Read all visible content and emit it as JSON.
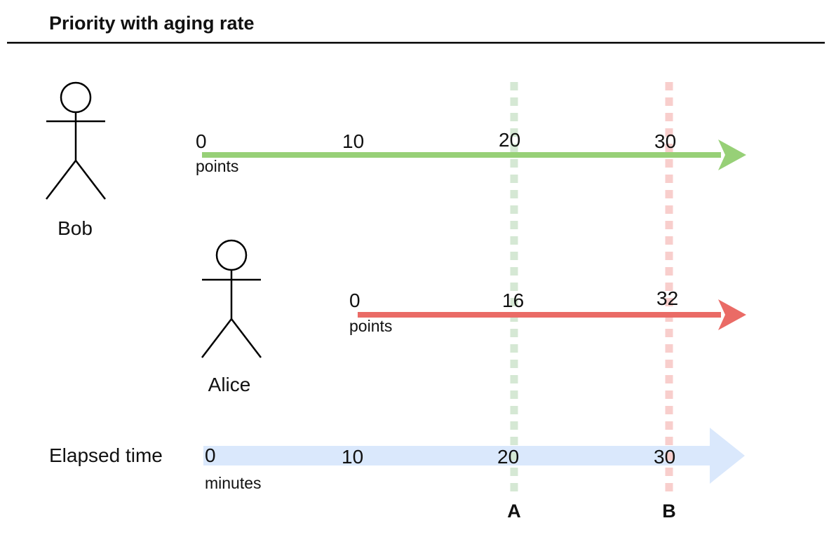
{
  "title": "Priority with aging rate",
  "colors": {
    "bob_line": "#97d077",
    "alice_line": "#ea6b66",
    "time_band": "#dae8fc",
    "marker_a": "#d5e8d4",
    "marker_b": "#f8cecc",
    "stroke": "#000000"
  },
  "bob": {
    "name": "Bob",
    "ticks": [
      "0",
      "10",
      "20",
      "30"
    ],
    "unit": "points"
  },
  "alice": {
    "name": "Alice",
    "ticks": [
      "0",
      "16",
      "32"
    ],
    "unit": "points"
  },
  "elapsed": {
    "label": "Elapsed time",
    "ticks": [
      "0",
      "10",
      "20",
      "30"
    ],
    "unit": "minutes"
  },
  "markers": {
    "a": "A",
    "b": "B"
  }
}
